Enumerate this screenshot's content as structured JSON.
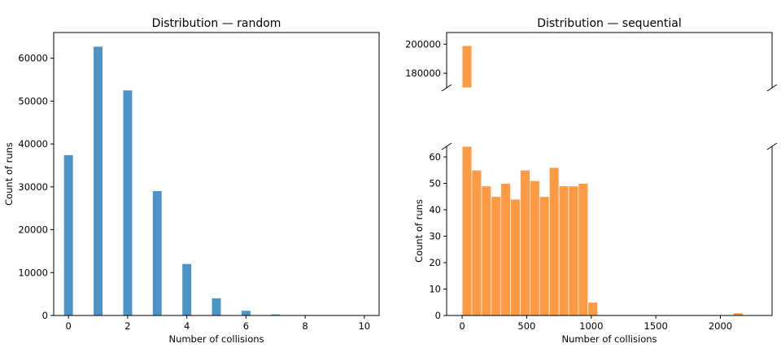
{
  "chart_data": [
    {
      "type": "bar",
      "title": "Distribution — random",
      "xlabel": "Number of collisions",
      "ylabel": "Count of runs",
      "xlim": [
        -0.5,
        10.5
      ],
      "ylim": [
        0,
        66000
      ],
      "xticks": [
        0,
        2,
        4,
        6,
        8,
        10
      ],
      "yticks": [
        0,
        10000,
        20000,
        30000,
        40000,
        50000,
        60000
      ],
      "bar_width": 0.3,
      "color": "#4c93c6",
      "x": [
        0,
        1,
        2,
        3,
        4,
        5,
        6,
        7,
        8,
        9,
        10
      ],
      "values": [
        37400,
        62700,
        52500,
        29000,
        12000,
        4000,
        1100,
        250,
        60,
        15,
        5
      ]
    },
    {
      "type": "bar",
      "title": "Distribution — sequential",
      "xlabel": "Number of collisions",
      "ylabel": "Count of runs",
      "broken_axis": true,
      "xlim": [
        -120,
        2400
      ],
      "top_ylim": [
        170000,
        208000
      ],
      "top_yticks": [
        180000,
        200000
      ],
      "bottom_ylim": [
        0,
        64
      ],
      "bottom_yticks": [
        0,
        10,
        20,
        30,
        40,
        50,
        60
      ],
      "xticks": [
        0,
        500,
        1000,
        1500,
        2000
      ],
      "color": "#fd9a43",
      "bin_width": 50,
      "bins": [
        {
          "x": 0,
          "value": 199000
        },
        {
          "x": 0,
          "value": 64
        },
        {
          "x": 50,
          "value": 55
        },
        {
          "x": 100,
          "value": 49
        },
        {
          "x": 150,
          "value": 45
        },
        {
          "x": 200,
          "value": 50
        },
        {
          "x": 250,
          "value": 44
        },
        {
          "x": 300,
          "value": 55
        },
        {
          "x": 350,
          "value": 51
        },
        {
          "x": 400,
          "value": 45
        },
        {
          "x": 450,
          "value": 56
        },
        {
          "x": 500,
          "value": 49
        },
        {
          "x": 550,
          "value": 49
        },
        {
          "x": 600,
          "value": 50
        },
        {
          "x": 650,
          "value": 5
        },
        {
          "x": 1400,
          "value": 1
        }
      ],
      "bin_scale": 1.5
    }
  ]
}
